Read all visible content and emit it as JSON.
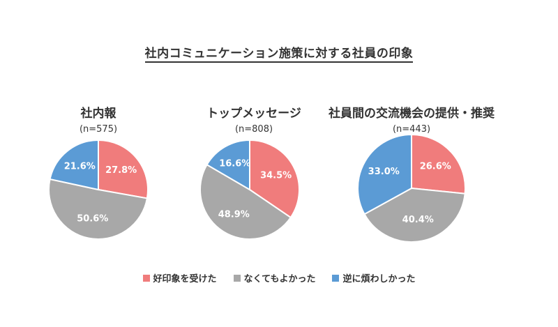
{
  "chart_data": {
    "type": "pie",
    "title": "社内コミュニケーション施策に対する社員の印象",
    "legend": {
      "position": "bottom",
      "entries": [
        "好印象を受けた",
        "なくてもよかった",
        "逆に煩わしかった"
      ]
    },
    "colors": [
      "#f07c7c",
      "#a8a8a8",
      "#5b9bd5"
    ],
    "pies": [
      {
        "title": "社内報",
        "n_label": "(n=575)",
        "values": [
          27.8,
          50.6,
          21.6
        ],
        "labels": [
          "27.8%",
          "50.6%",
          "21.6%"
        ]
      },
      {
        "title": "トップメッセージ",
        "n_label": "(n=808)",
        "values": [
          34.5,
          48.9,
          16.6
        ],
        "labels": [
          "34.5%",
          "48.9%",
          "16.6%"
        ]
      },
      {
        "title": "社員間の交流機会の提供・推奨",
        "n_label": "(n=443)",
        "values": [
          26.6,
          40.4,
          33.0
        ],
        "labels": [
          "26.6%",
          "40.4%",
          "33.0%"
        ]
      }
    ]
  }
}
